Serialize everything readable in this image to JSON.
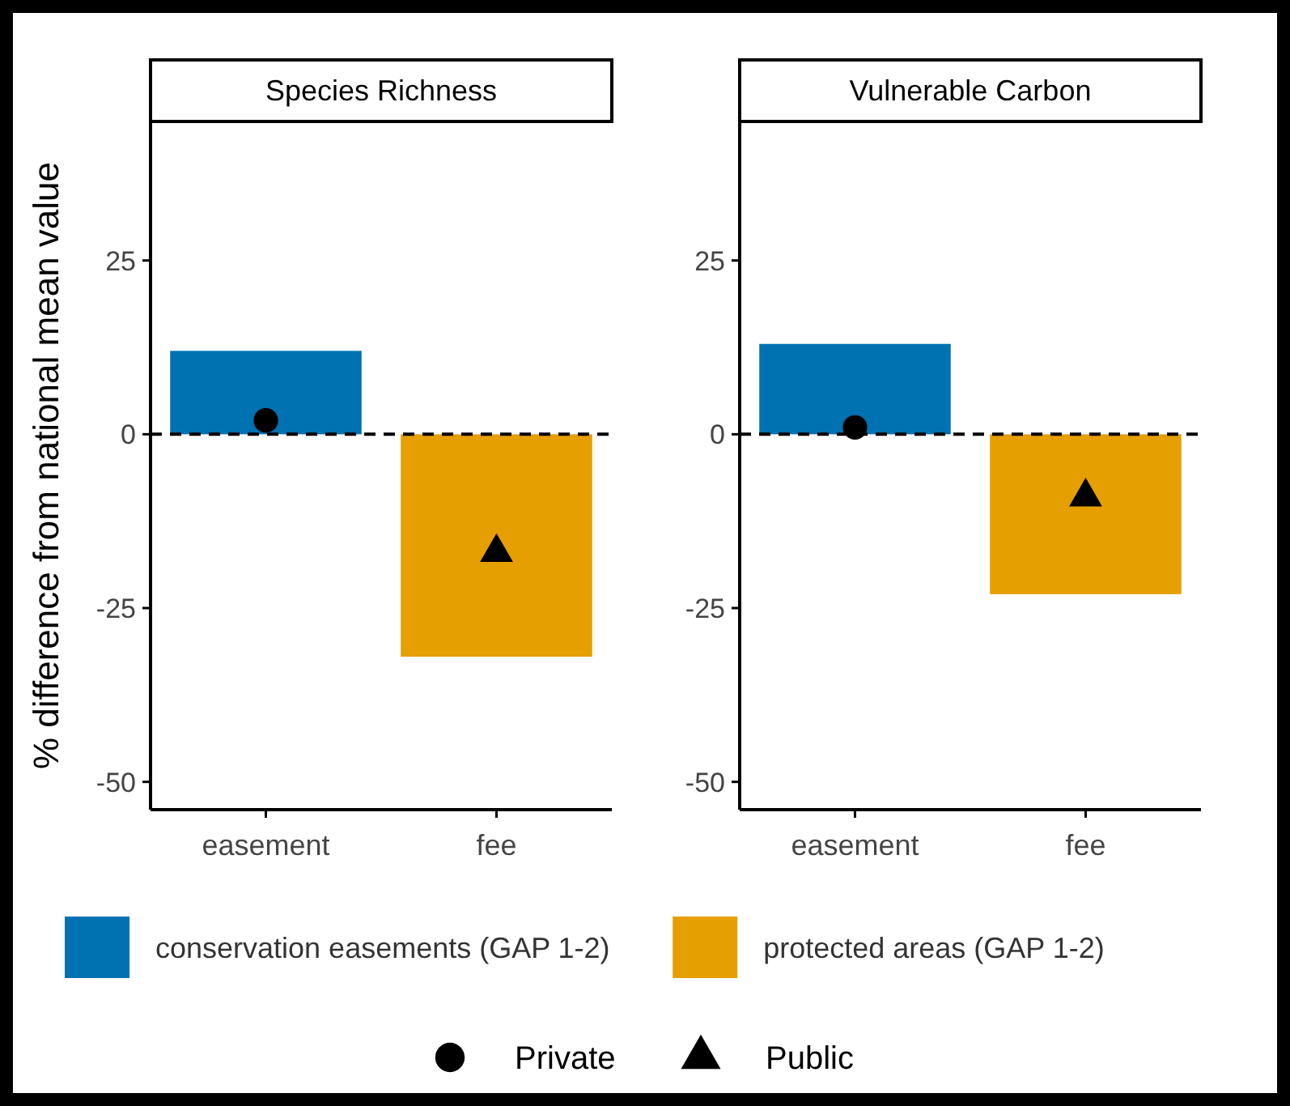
{
  "chart_data": [
    {
      "type": "bar",
      "title": "Species Richness",
      "ylabel": "% difference from national mean value",
      "categories": [
        "easement",
        "fee"
      ],
      "ylim": [
        -54,
        45
      ],
      "yticks": [
        -50,
        -25,
        0,
        25
      ],
      "grid": false,
      "legend": "bottom",
      "ref_lines": [
        {
          "axis": "y",
          "value": 0,
          "line_style": "dashed",
          "color": "#000000"
        }
      ],
      "series": [
        {
          "type": "bar",
          "name": "conservation easements (GAP 1-2)",
          "color": "#0072b2",
          "values": [
            12,
            null
          ]
        },
        {
          "type": "bar",
          "name": "protected areas (GAP 1-2)",
          "color": "#e69f00",
          "values": [
            null,
            -32
          ]
        },
        {
          "type": "scatter",
          "name": "Private",
          "color": "#000000",
          "marker": "circle",
          "x": [
            "easement"
          ],
          "values": [
            2
          ]
        },
        {
          "type": "scatter",
          "name": "Public",
          "color": "#000000",
          "marker": "triangle",
          "x": [
            "fee"
          ],
          "values": [
            -17
          ]
        }
      ]
    },
    {
      "type": "bar",
      "title": "Vulnerable Carbon",
      "categories": [
        "easement",
        "fee"
      ],
      "ylim": [
        -54,
        45
      ],
      "yticks": [
        -50,
        -25,
        0,
        25
      ],
      "grid": false,
      "ref_lines": [
        {
          "axis": "y",
          "value": 0,
          "line_style": "dashed",
          "color": "#000000"
        }
      ],
      "series": [
        {
          "type": "bar",
          "color": "#0072b2",
          "values": [
            13,
            null
          ]
        },
        {
          "type": "bar",
          "color": "#e69f00",
          "values": [
            null,
            -23
          ]
        },
        {
          "type": "scatter",
          "color": "#000000",
          "marker": "circle",
          "x": [
            "easement"
          ],
          "values": [
            1
          ]
        },
        {
          "type": "scatter",
          "color": "#000000",
          "marker": "triangle",
          "x": [
            "fee"
          ],
          "values": [
            -9
          ]
        }
      ]
    }
  ]
}
